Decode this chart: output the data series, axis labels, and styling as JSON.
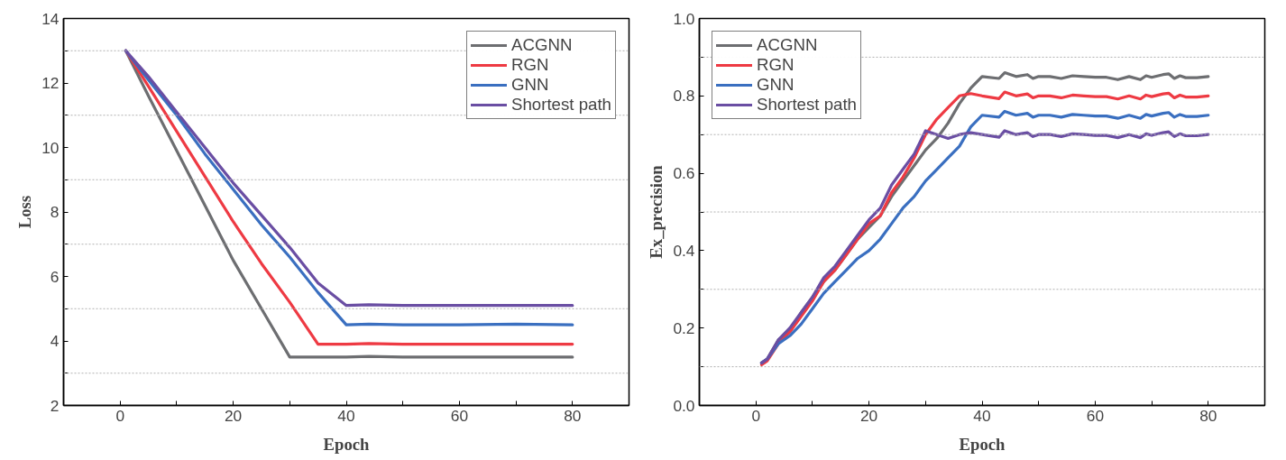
{
  "chart_data": [
    {
      "type": "line",
      "xlabel": "Epoch",
      "ylabel": "Loss",
      "xlim": [
        -10,
        90
      ],
      "ylim": [
        2,
        14
      ],
      "xticks": [
        0,
        {
          "value": 10,
          "label": null
        },
        20,
        {
          "value": 30,
          "label": null
        },
        40,
        {
          "value": 50,
          "label": null
        },
        60,
        {
          "value": 70,
          "label": null
        },
        80
      ],
      "yticks": [
        2,
        {
          "value": 3,
          "label": null
        },
        4,
        {
          "value": 5,
          "label": null
        },
        6,
        {
          "value": 7,
          "label": null
        },
        8,
        {
          "value": 9,
          "label": null
        },
        10,
        {
          "value": 11,
          "label": null
        },
        12,
        {
          "value": 13,
          "label": null
        },
        14
      ],
      "grid": "y",
      "legend": "top right",
      "line_style": "solid",
      "x": [
        1,
        5,
        10,
        15,
        20,
        25,
        30,
        35,
        40,
        44,
        50,
        60,
        70,
        80
      ],
      "series": [
        {
          "name": "ACGNN",
          "color": "#6d6e71",
          "values": [
            13,
            11.6,
            9.9,
            8.2,
            6.5,
            5.0,
            3.5,
            3.5,
            3.5,
            3.52,
            3.5,
            3.5,
            3.5,
            3.5
          ]
        },
        {
          "name": "RGN",
          "color": "#ee3a43",
          "values": [
            13,
            11.9,
            10.5,
            9.1,
            7.7,
            6.4,
            5.2,
            3.9,
            3.9,
            3.92,
            3.9,
            3.9,
            3.9,
            3.9
          ]
        },
        {
          "name": "GNN",
          "color": "#3a6fc0",
          "values": [
            13,
            12.1,
            11.0,
            9.8,
            8.7,
            7.6,
            6.6,
            5.5,
            4.5,
            4.52,
            4.5,
            4.5,
            4.52,
            4.5
          ]
        },
        {
          "name": "Shortest path",
          "color": "#6a4ea3",
          "values": [
            13,
            12.2,
            11.1,
            10.0,
            8.9,
            7.9,
            6.9,
            5.8,
            5.1,
            5.12,
            5.1,
            5.1,
            5.1,
            5.1
          ]
        }
      ]
    },
    {
      "type": "line",
      "xlabel": "Epoch",
      "ylabel": "Ex_precision",
      "xlim": [
        -10,
        90
      ],
      "ylim": [
        0,
        1
      ],
      "xticks": [
        0,
        {
          "value": 10,
          "label": null
        },
        20,
        {
          "value": 30,
          "label": null
        },
        40,
        {
          "value": 50,
          "label": null
        },
        60,
        {
          "value": 70,
          "label": null
        },
        80
      ],
      "yticks": [
        {
          "value": 0,
          "label": "0.0"
        },
        {
          "value": 0.1,
          "label": null
        },
        0.2,
        {
          "value": 0.3,
          "label": null
        },
        0.4,
        {
          "value": 0.5,
          "label": null
        },
        0.6,
        {
          "value": 0.7,
          "label": null
        },
        0.8,
        {
          "value": 0.9,
          "label": null
        },
        {
          "value": 1,
          "label": "1.0"
        }
      ],
      "grid": "y",
      "legend": "top left",
      "line_style": "solid",
      "x": [
        1,
        2,
        4,
        6,
        8,
        10,
        12,
        14,
        16,
        18,
        20,
        22,
        24,
        26,
        28,
        30,
        32,
        34,
        36,
        38,
        40,
        43,
        44,
        46,
        48,
        49,
        50,
        52,
        54,
        56,
        58,
        60,
        62,
        64,
        66,
        68,
        69,
        70,
        72,
        73,
        74,
        75,
        76,
        78,
        80
      ],
      "series": [
        {
          "name": "ACGNN",
          "color": "#6d6e71",
          "values": [
            0.11,
            0.12,
            0.17,
            0.19,
            0.24,
            0.28,
            0.32,
            0.35,
            0.39,
            0.43,
            0.46,
            0.49,
            0.54,
            0.58,
            0.62,
            0.66,
            0.69,
            0.73,
            0.78,
            0.82,
            0.85,
            0.845,
            0.86,
            0.85,
            0.855,
            0.845,
            0.85,
            0.85,
            0.845,
            0.852,
            0.85,
            0.848,
            0.848,
            0.842,
            0.85,
            0.842,
            0.852,
            0.848,
            0.855,
            0.857,
            0.845,
            0.852,
            0.847,
            0.847,
            0.85
          ]
        },
        {
          "name": "RGN",
          "color": "#ee3a43",
          "values": [
            0.105,
            0.115,
            0.16,
            0.19,
            0.23,
            0.27,
            0.32,
            0.35,
            0.39,
            0.43,
            0.47,
            0.49,
            0.55,
            0.59,
            0.64,
            0.7,
            0.74,
            0.77,
            0.8,
            0.806,
            0.8,
            0.793,
            0.81,
            0.8,
            0.805,
            0.795,
            0.8,
            0.8,
            0.795,
            0.802,
            0.8,
            0.798,
            0.798,
            0.792,
            0.8,
            0.792,
            0.802,
            0.798,
            0.805,
            0.807,
            0.795,
            0.802,
            0.797,
            0.797,
            0.8
          ]
        },
        {
          "name": "GNN",
          "color": "#3a6fc0",
          "values": [
            0.11,
            0.12,
            0.16,
            0.18,
            0.21,
            0.25,
            0.29,
            0.32,
            0.35,
            0.38,
            0.4,
            0.43,
            0.47,
            0.51,
            0.54,
            0.58,
            0.61,
            0.64,
            0.67,
            0.72,
            0.75,
            0.745,
            0.76,
            0.75,
            0.755,
            0.745,
            0.75,
            0.75,
            0.745,
            0.752,
            0.75,
            0.748,
            0.748,
            0.742,
            0.75,
            0.742,
            0.752,
            0.748,
            0.755,
            0.757,
            0.745,
            0.752,
            0.747,
            0.747,
            0.75
          ]
        },
        {
          "name": "Shortest path",
          "color": "#6a4ea3",
          "values": [
            0.11,
            0.12,
            0.17,
            0.2,
            0.24,
            0.28,
            0.33,
            0.36,
            0.4,
            0.44,
            0.48,
            0.51,
            0.57,
            0.61,
            0.65,
            0.71,
            0.7,
            0.69,
            0.7,
            0.705,
            0.7,
            0.693,
            0.71,
            0.7,
            0.705,
            0.695,
            0.7,
            0.7,
            0.695,
            0.702,
            0.7,
            0.698,
            0.698,
            0.692,
            0.7,
            0.692,
            0.702,
            0.698,
            0.705,
            0.707,
            0.695,
            0.702,
            0.697,
            0.697,
            0.7
          ]
        }
      ]
    }
  ]
}
